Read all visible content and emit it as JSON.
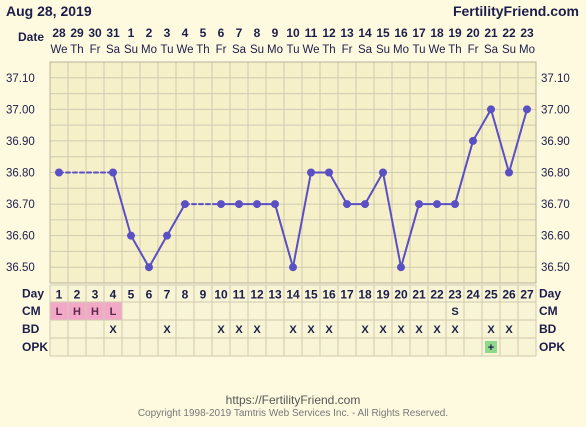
{
  "header": {
    "date": "Aug 28, 2019",
    "brand": "FertilityFriend.com",
    "date_label": "Date"
  },
  "chart_data": {
    "type": "line",
    "dates": [
      "28",
      "29",
      "30",
      "31",
      "1",
      "2",
      "3",
      "4",
      "5",
      "6",
      "7",
      "8",
      "9",
      "10",
      "11",
      "12",
      "13",
      "14",
      "15",
      "16",
      "17",
      "18",
      "19",
      "20",
      "21",
      "22",
      "23"
    ],
    "weekdays": [
      "We",
      "Th",
      "Fr",
      "Sa",
      "Su",
      "Mo",
      "Tu",
      "We",
      "Th",
      "Fr",
      "Sa",
      "Su",
      "Mo",
      "Tu",
      "We",
      "Th",
      "Fr",
      "Sa",
      "Su",
      "Mo",
      "Tu",
      "We",
      "Th",
      "Fr",
      "Sa",
      "Su",
      "Mo"
    ],
    "cycle_days": [
      "1",
      "2",
      "3",
      "4",
      "5",
      "6",
      "7",
      "8",
      "9",
      "10",
      "11",
      "12",
      "13",
      "14",
      "15",
      "16",
      "17",
      "18",
      "19",
      "20",
      "21",
      "22",
      "23",
      "24",
      "25",
      "26",
      "27"
    ],
    "yticks": [
      "37.10",
      "37.00",
      "36.90",
      "36.80",
      "36.70",
      "36.60",
      "36.50"
    ],
    "ylim": [
      36.45,
      37.15
    ],
    "temperatures": [
      36.8,
      null,
      null,
      36.8,
      36.6,
      36.5,
      36.6,
      36.7,
      null,
      36.7,
      36.7,
      36.7,
      36.7,
      36.5,
      36.8,
      36.8,
      36.7,
      36.7,
      36.8,
      36.5,
      36.7,
      36.7,
      36.7,
      36.9,
      37.0,
      36.8,
      37.0
    ],
    "dashed_segments": [
      [
        0,
        3
      ],
      [
        7,
        9
      ]
    ],
    "line_color": "#5a4fc4",
    "rows": {
      "day_label": "Day",
      "cm_label": "CM",
      "bd_label": "BD",
      "opk_label": "OPK",
      "cm": [
        "L",
        "H",
        "H",
        "L",
        "",
        "",
        "",
        "",
        "",
        "",
        "",
        "",
        "",
        "",
        "",
        "",
        "",
        "",
        "",
        "",
        "",
        "",
        "S",
        "",
        "",
        "",
        ""
      ],
      "cm_highlight": [
        true,
        true,
        true,
        true,
        false,
        false,
        false,
        false,
        false,
        false,
        false,
        false,
        false,
        false,
        false,
        false,
        false,
        false,
        false,
        false,
        false,
        false,
        false,
        false,
        false,
        false,
        false
      ],
      "bd": [
        "",
        "",
        "",
        "X",
        "",
        "",
        "X",
        "",
        "",
        "X",
        "X",
        "X",
        "",
        "X",
        "X",
        "X",
        "",
        "X",
        "X",
        "X",
        "X",
        "X",
        "X",
        "",
        "X",
        "X",
        ""
      ],
      "opk": [
        "",
        "",
        "",
        "",
        "",
        "",
        "",
        "",
        "",
        "",
        "",
        "",
        "",
        "",
        "",
        "",
        "",
        "",
        "",
        "",
        "",
        "",
        "",
        "",
        "+",
        "",
        ""
      ]
    }
  },
  "colors": {
    "background": "#fefae0",
    "plot_bg": "#f5f0c8",
    "grid": "#cfcab0",
    "cm_pink": "#f4a8c8",
    "opk_green": "#8fd98f"
  },
  "footer": {
    "url": "https://FertilityFriend.com",
    "copyright": "Copyright 1998-2019 Tamtris Web Services Inc. - All Rights Reserved."
  }
}
